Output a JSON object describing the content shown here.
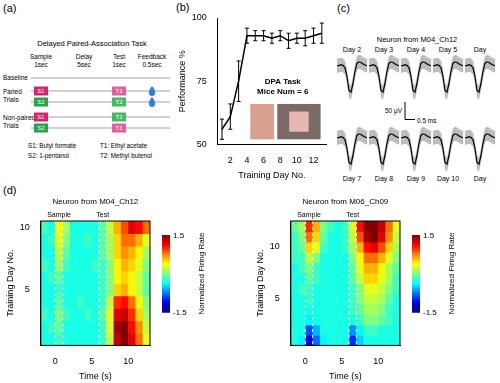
{
  "panel_a": {
    "label": "(a)",
    "title": "Delayed Paired-Association Task",
    "phases": [
      {
        "name": "Sample",
        "duration": "1sec"
      },
      {
        "name": "Delay",
        "duration": "5sec"
      },
      {
        "name": "Test",
        "duration": "1sec"
      },
      {
        "name": "Feedback",
        "duration": "0.5sec"
      }
    ],
    "baseline_label": "Baseline",
    "groups": [
      {
        "name": "Paried Trials",
        "trials": [
          {
            "sample": "S1",
            "test": "T1",
            "feedback": true
          },
          {
            "sample": "S2",
            "test": "T2",
            "feedback": true
          }
        ]
      },
      {
        "name": "Non-paired Trials",
        "trials": [
          {
            "sample": "S1",
            "test": "T2",
            "feedback": false
          },
          {
            "sample": "S2",
            "test": "T1",
            "feedback": false
          }
        ]
      }
    ],
    "odors": [
      {
        "code": "S1",
        "legend_text": "S1: Butyl formate",
        "color": "#d4246e"
      },
      {
        "code": "S2",
        "legend_text": "S2: 1-pentanol",
        "color": "#2aa24a"
      },
      {
        "code": "T1",
        "legend_text": "T1: Ethyl acetate",
        "color": "#e060a0"
      },
      {
        "code": "T2",
        "legend_text": "T2: Methyl butenol",
        "color": "#45b862"
      }
    ]
  },
  "chart_data": [
    {
      "type": "line",
      "label": "(b)",
      "x_label": "Training Day No.",
      "y_label": "Performance %",
      "annotations": [
        "DPA Task",
        "Mice Num = 6"
      ],
      "x": [
        1,
        2,
        3,
        4,
        5,
        6,
        7,
        8,
        9,
        10,
        11,
        12,
        13
      ],
      "values": [
        56,
        61,
        75,
        93,
        93,
        93,
        92,
        93,
        91,
        92,
        92,
        93,
        94
      ],
      "error": [
        4,
        5,
        8,
        3,
        2,
        2,
        2,
        2,
        3,
        2,
        3,
        3,
        4
      ],
      "xlim": [
        0.5,
        13.5
      ],
      "xticks": [
        2,
        4,
        6,
        8,
        10,
        12
      ],
      "ylim": [
        50,
        100
      ],
      "yticks": [
        50,
        75,
        100
      ],
      "color": "#000000",
      "marker": "none",
      "grid": false
    },
    {
      "type": "heatmap",
      "title": "Neuron from M04_Ch12",
      "x_label": "Time (s)",
      "y_label": "Training Day No.",
      "x": [
        -1.5,
        -0.5,
        0.5,
        1.5,
        2.5,
        3.5,
        4.5,
        5.5,
        6.5,
        7.5,
        8.5,
        9.5,
        10.5,
        11.5,
        12.5
      ],
      "y": [
        1,
        2,
        3,
        4,
        5,
        6,
        7,
        8,
        9,
        10
      ],
      "cells": [
        [
          -0.3,
          -0.3,
          -0.2,
          -0.3,
          -0.3,
          -0.3,
          -0.3,
          -0.3,
          -0.2,
          0.2,
          1.3,
          1.5,
          1.2,
          0.8,
          0.3
        ],
        [
          -0.3,
          -0.2,
          -0.1,
          -0.3,
          -0.3,
          -0.3,
          -0.3,
          -0.3,
          -0.2,
          0.3,
          1.4,
          1.5,
          1.1,
          0.7,
          0.2
        ],
        [
          -0.2,
          -0.3,
          0.0,
          -0.2,
          -0.3,
          -0.3,
          -0.2,
          -0.3,
          -0.1,
          0.3,
          1.2,
          1.3,
          1.0,
          0.5,
          0.1
        ],
        [
          -0.3,
          -0.3,
          -0.1,
          -0.3,
          -0.3,
          -0.2,
          -0.3,
          -0.3,
          -0.2,
          0.2,
          1.0,
          1.1,
          0.8,
          0.4,
          0.0
        ],
        [
          -0.3,
          -0.3,
          -0.2,
          -0.3,
          -0.3,
          -0.3,
          -0.3,
          -0.3,
          -0.2,
          0.0,
          0.5,
          0.6,
          0.4,
          0.2,
          -0.1
        ],
        [
          -0.3,
          -0.2,
          -0.1,
          -0.3,
          -0.3,
          -0.3,
          -0.3,
          -0.3,
          -0.2,
          0.0,
          0.4,
          0.5,
          0.4,
          0.2,
          -0.1
        ],
        [
          -0.2,
          -0.3,
          0.1,
          -0.2,
          -0.3,
          -0.3,
          -0.3,
          -0.2,
          -0.2,
          0.0,
          0.4,
          0.6,
          0.5,
          0.3,
          0.0
        ],
        [
          -0.3,
          -0.3,
          0.2,
          -0.1,
          -0.3,
          -0.3,
          -0.3,
          -0.3,
          -0.1,
          0.1,
          0.5,
          0.7,
          0.6,
          0.4,
          0.1
        ],
        [
          -0.3,
          -0.2,
          0.3,
          0.0,
          -0.3,
          -0.3,
          -0.2,
          -0.3,
          -0.1,
          0.1,
          0.5,
          0.8,
          0.8,
          0.6,
          0.3
        ],
        [
          -0.2,
          -0.3,
          0.4,
          0.1,
          -0.3,
          -0.3,
          -0.3,
          -0.3,
          -0.1,
          0.2,
          0.6,
          0.9,
          1.2,
          1.1,
          0.8
        ]
      ],
      "xlim": [
        -2,
        13
      ],
      "xticks": [
        0,
        5,
        10
      ],
      "ylim": [
        0.5,
        10.5
      ],
      "yticks": [
        5,
        10
      ],
      "epochs": [
        {
          "name": "Sample",
          "start": 0,
          "end": 1
        },
        {
          "name": "Test",
          "start": 6,
          "end": 7
        }
      ],
      "colorbar": {
        "label": "Normalized Firing Rate",
        "range": [
          -1.5,
          1.5
        ],
        "ticks": [
          -1.5,
          1.5
        ]
      }
    },
    {
      "type": "heatmap",
      "title": "Neuron from M06_Ch09",
      "x_label": "Time (s)",
      "y_label": "Training Day No.",
      "x": [
        -1.5,
        -0.5,
        0.5,
        1.5,
        2.5,
        3.5,
        4.5,
        5.5,
        6.5,
        7.5,
        8.5,
        9.5,
        10.5,
        11.5,
        12.5
      ],
      "y": [
        1,
        2,
        3,
        4,
        5,
        6,
        7,
        8,
        9,
        10,
        11,
        12
      ],
      "cells": [
        [
          -0.3,
          -0.4,
          -1.2,
          -0.8,
          -0.4,
          -0.3,
          -0.3,
          -0.3,
          -1.0,
          -0.5,
          -0.3,
          -0.3,
          -0.3,
          -0.3,
          -0.3
        ],
        [
          -0.3,
          -0.3,
          -0.9,
          -0.6,
          -0.3,
          -0.3,
          -0.3,
          -0.3,
          -0.7,
          -0.4,
          -0.2,
          -0.2,
          -0.3,
          -0.3,
          -0.3
        ],
        [
          -0.3,
          -0.3,
          -0.4,
          -0.3,
          -0.3,
          -0.3,
          -0.3,
          -0.3,
          -0.3,
          -0.2,
          0.0,
          0.0,
          -0.1,
          -0.2,
          -0.3
        ],
        [
          -0.3,
          -0.3,
          -0.3,
          -0.3,
          -0.3,
          -0.3,
          -0.3,
          -0.3,
          -0.2,
          -0.1,
          0.1,
          0.1,
          0.0,
          -0.2,
          -0.3
        ],
        [
          -0.3,
          -0.3,
          -0.2,
          -0.3,
          -0.3,
          -0.3,
          -0.3,
          -0.3,
          -0.2,
          0.0,
          0.2,
          0.2,
          0.1,
          -0.1,
          -0.3
        ],
        [
          -0.3,
          -0.2,
          -0.2,
          -0.3,
          -0.3,
          -0.3,
          -0.3,
          -0.3,
          -0.2,
          0.0,
          0.3,
          0.3,
          0.2,
          0.0,
          -0.2
        ],
        [
          -0.3,
          -0.3,
          -0.1,
          -0.2,
          -0.3,
          -0.3,
          -0.3,
          -0.3,
          -0.1,
          0.2,
          0.5,
          0.5,
          0.3,
          0.1,
          -0.2
        ],
        [
          -0.3,
          -0.2,
          0.0,
          -0.2,
          -0.3,
          -0.3,
          -0.3,
          -0.3,
          -0.1,
          0.3,
          0.6,
          0.6,
          0.4,
          0.1,
          -0.1
        ],
        [
          -0.2,
          -0.2,
          0.2,
          0.0,
          -0.3,
          -0.3,
          -0.3,
          -0.3,
          0.0,
          0.4,
          0.8,
          0.8,
          0.6,
          0.3,
          0.0
        ],
        [
          -0.2,
          -0.1,
          0.5,
          0.3,
          -0.2,
          -0.3,
          -0.3,
          -0.2,
          0.1,
          0.6,
          1.1,
          1.2,
          0.9,
          0.5,
          0.1
        ],
        [
          -0.2,
          0.0,
          0.8,
          0.5,
          -0.1,
          -0.3,
          -0.3,
          -0.2,
          0.2,
          0.9,
          1.4,
          1.5,
          1.2,
          0.7,
          0.2
        ],
        [
          -0.1,
          0.1,
          1.0,
          0.6,
          0.0,
          -0.2,
          -0.3,
          -0.2,
          0.3,
          1.1,
          1.5,
          1.5,
          1.3,
          0.8,
          0.3
        ]
      ],
      "xlim": [
        -2,
        13
      ],
      "xticks": [
        0,
        5,
        10
      ],
      "ylim": [
        0.5,
        12.5
      ],
      "yticks": [
        5,
        10
      ],
      "epochs": [
        {
          "name": "Sample",
          "start": 0,
          "end": 1
        },
        {
          "name": "Test",
          "start": 6,
          "end": 7
        }
      ],
      "colorbar": {
        "label": "Normalized Firing Rate",
        "range": [
          -1.5,
          1.5
        ],
        "ticks": [
          -1.5,
          1.5
        ]
      }
    }
  ],
  "panel_c": {
    "label": "(c)",
    "title": "Neuron from M04_Ch12",
    "rows": [
      [
        "Day 2",
        "Day 3",
        "Day 4",
        "Day 5",
        "Day"
      ],
      [
        "Day 7",
        "Day 8",
        "Day 9",
        "Day 10",
        "Day"
      ]
    ],
    "waveform_uV": [
      0,
      2,
      3,
      2,
      -5,
      -30,
      -70,
      -75,
      -50,
      -15,
      8,
      12,
      10,
      6,
      3,
      1
    ],
    "spread_uV": 20,
    "sample_interval_ms": 0.1,
    "scale_bar": {
      "amplitude": 50,
      "amplitude_label": "50 μV",
      "duration": 0.5,
      "duration_label": "0.5 ms"
    }
  },
  "panel_d": {
    "label": "(d)"
  }
}
